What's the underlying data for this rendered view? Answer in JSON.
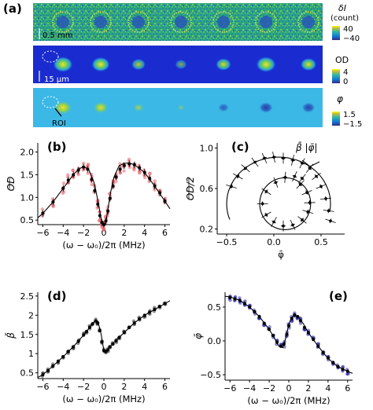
{
  "panel_labels": {
    "a": "(a)",
    "b": "(b)",
    "c": "(c)",
    "d": "(d)",
    "e": "(e)"
  },
  "strips": {
    "row1": {
      "scale_text": "0.5 mm",
      "cb_title_1": "δI",
      "cb_title_2": "(count)",
      "cb_max": "40",
      "cb_min": "−40"
    },
    "row2": {
      "scale_text": "15 μm",
      "cb_title": "OD",
      "cb_max": "4",
      "cb_min": "0"
    },
    "row3": {
      "roi_text": "ROI",
      "cb_title": "φ",
      "cb_max": "1.5",
      "cb_min": "−1.5"
    },
    "od_spots": [
      0.9,
      0.8,
      0.45,
      0.25,
      0.55,
      0.9,
      0.6
    ],
    "phi_spots": [
      0.85,
      0.6,
      0.25,
      0.05,
      -0.3,
      -0.55,
      -0.5
    ],
    "colors": {
      "row1_bg": "#2aa07a",
      "row2_bg": "#1a2bcf",
      "row3_bg": "#3cb8e6"
    }
  },
  "chart_data": [
    {
      "id": "b",
      "type": "scatter",
      "xlabel": "(ω − ω₀)/2π (MHz)",
      "ylabel": "OD",
      "xlim": [
        -6.5,
        6.5
      ],
      "ylim": [
        0.4,
        2.2
      ],
      "xticks": [
        -6,
        -4,
        -2,
        0,
        2,
        4,
        6
      ],
      "yticks": [
        0.5,
        1.0,
        1.5,
        2.0
      ],
      "ytick_labels": [
        "0.5",
        "1.0",
        "1.5",
        "2.0"
      ],
      "point_color": "#e8636a",
      "mean_color": "#000000",
      "fit_x": [
        -6.5,
        -6,
        -5,
        -4,
        -3,
        -2.5,
        -2,
        -1.5,
        -1,
        -0.7,
        -0.4,
        -0.2,
        0,
        0.2,
        0.4,
        0.7,
        1,
        1.5,
        2,
        2.5,
        3,
        4,
        5,
        6,
        6.5
      ],
      "fit_y": [
        0.55,
        0.65,
        0.9,
        1.2,
        1.5,
        1.62,
        1.68,
        1.62,
        1.35,
        1.05,
        0.7,
        0.45,
        0.38,
        0.45,
        0.75,
        1.15,
        1.45,
        1.7,
        1.75,
        1.76,
        1.72,
        1.55,
        1.25,
        0.92,
        0.75
      ],
      "mean_x": [
        -6,
        -5,
        -4,
        -3.5,
        -3,
        -2.5,
        -2,
        -1.6,
        -1.2,
        -0.9,
        -0.6,
        -0.4,
        -0.2,
        0,
        0.2,
        0.4,
        0.6,
        0.9,
        1.2,
        1.6,
        2,
        2.5,
        3,
        3.5,
        4,
        4.5,
        5,
        5.5,
        6
      ],
      "mean_y": [
        0.65,
        0.9,
        1.2,
        1.38,
        1.5,
        1.6,
        1.67,
        1.62,
        1.4,
        1.15,
        0.85,
        0.6,
        0.45,
        0.4,
        0.48,
        0.7,
        0.98,
        1.25,
        1.45,
        1.62,
        1.7,
        1.74,
        1.72,
        1.65,
        1.55,
        1.42,
        1.25,
        1.1,
        0.92
      ]
    },
    {
      "id": "c",
      "type": "scatter",
      "xlabel": "φ̄",
      "ylabel": "OD/2",
      "xlim": [
        -0.6,
        0.75
      ],
      "ylim": [
        0.15,
        1.05
      ],
      "xticks": [
        -0.5,
        0,
        0.5
      ],
      "xtick_labels": [
        "−0.5",
        "0.0",
        "0.5"
      ],
      "yticks": [
        0.2,
        0.6,
        1.0
      ],
      "ytick_labels": [
        "0.2",
        "0.6",
        "1.0"
      ],
      "annotation": "β̄ |φ̄|",
      "outer_arc": {
        "cx": 0.05,
        "cy": 0.43,
        "r": 0.48,
        "start_deg": 200,
        "end_deg": 350
      },
      "inner_circle": {
        "cx": 0.12,
        "cy": 0.45,
        "r": 0.27
      },
      "points_x": [
        -0.45,
        -0.38,
        -0.3,
        -0.2,
        -0.1,
        0,
        0.1,
        0.2,
        0.3,
        0.38,
        0.45,
        0.5,
        0.55,
        0.58,
        0.6,
        0.3,
        0.22,
        0.12,
        0.02,
        -0.08,
        -0.12,
        -0.08,
        0.0,
        0.1,
        0.2,
        0.3,
        0.36,
        0.38,
        0.35,
        0.28
      ],
      "points_y": [
        0.62,
        0.72,
        0.8,
        0.86,
        0.9,
        0.91,
        0.9,
        0.88,
        0.85,
        0.8,
        0.72,
        0.62,
        0.5,
        0.38,
        0.28,
        0.7,
        0.72,
        0.71,
        0.66,
        0.57,
        0.45,
        0.34,
        0.27,
        0.23,
        0.24,
        0.29,
        0.37,
        0.46,
        0.56,
        0.64
      ]
    },
    {
      "id": "d",
      "type": "scatter",
      "xlabel": "(ω − ω₀)/2π (MHz)",
      "ylabel": "β̄",
      "xlim": [
        -6.5,
        6.5
      ],
      "ylim": [
        0.35,
        2.6
      ],
      "xticks": [
        -6,
        -4,
        -2,
        0,
        2,
        4,
        6
      ],
      "yticks": [
        0.5,
        1.0,
        1.5,
        2.0,
        2.5
      ],
      "ytick_labels": [
        "0.5",
        "1",
        "1.5",
        "2",
        "2.5"
      ],
      "point_color": "#333333",
      "fit_x": [
        -6.5,
        -6,
        -5,
        -4,
        -3,
        -2,
        -1.5,
        -1,
        -0.6,
        -0.3,
        0,
        0.3,
        0.6,
        1,
        1.5,
        2,
        3,
        4,
        5,
        6,
        6.5
      ],
      "fit_y": [
        0.38,
        0.45,
        0.68,
        0.92,
        1.18,
        1.48,
        1.65,
        1.82,
        1.85,
        1.55,
        1.08,
        1.05,
        1.18,
        1.3,
        1.42,
        1.55,
        1.8,
        2.0,
        2.15,
        2.3,
        2.38
      ],
      "mean_x": [
        -6,
        -5.5,
        -5,
        -4.5,
        -4,
        -3.5,
        -3,
        -2.5,
        -2,
        -1.7,
        -1.4,
        -1.1,
        -0.8,
        -0.6,
        -0.4,
        -0.2,
        0,
        0.2,
        0.4,
        0.6,
        0.9,
        1.2,
        1.5,
        2,
        2.5,
        3,
        3.5,
        4,
        4.5,
        5,
        5.5,
        6
      ],
      "mean_y": [
        0.45,
        0.56,
        0.68,
        0.8,
        0.92,
        1.05,
        1.18,
        1.32,
        1.48,
        1.58,
        1.68,
        1.78,
        1.85,
        1.8,
        1.6,
        1.3,
        1.08,
        1.05,
        1.1,
        1.18,
        1.25,
        1.33,
        1.42,
        1.55,
        1.68,
        1.8,
        1.9,
        2.0,
        2.08,
        2.15,
        2.23,
        2.3
      ]
    },
    {
      "id": "e",
      "type": "scatter",
      "xlabel": "(ω − ω₀)/2π (MHz)",
      "ylabel": "φ̄",
      "xlim": [
        -6.5,
        6.5
      ],
      "ylim": [
        -0.58,
        0.72
      ],
      "xticks": [
        -6,
        -4,
        -2,
        0,
        2,
        4,
        6
      ],
      "yticks": [
        -0.5,
        0,
        0.5
      ],
      "ytick_labels": [
        "−0.5",
        "0.0",
        "0.5"
      ],
      "point_color": "#2b2ba8",
      "fit_x": [
        -6.5,
        -6,
        -5,
        -4,
        -3,
        -2,
        -1.5,
        -1,
        -0.6,
        -0.3,
        0,
        0.3,
        0.6,
        1,
        1.5,
        2,
        3,
        4,
        5,
        6,
        6.5
      ],
      "fit_y": [
        0.66,
        0.65,
        0.6,
        0.5,
        0.36,
        0.17,
        0.05,
        -0.08,
        -0.1,
        0.05,
        0.25,
        0.35,
        0.38,
        0.35,
        0.25,
        0.12,
        -0.08,
        -0.26,
        -0.38,
        -0.45,
        -0.48
      ],
      "mean_x": [
        -6,
        -5.5,
        -5,
        -4.5,
        -4,
        -3.5,
        -3,
        -2.5,
        -2,
        -1.6,
        -1.2,
        -0.8,
        -0.5,
        -0.2,
        0,
        0.3,
        0.6,
        0.9,
        1.2,
        1.6,
        2,
        2.5,
        3,
        3.5,
        4,
        4.5,
        5,
        5.5,
        6
      ],
      "mean_y": [
        0.64,
        0.62,
        0.6,
        0.55,
        0.5,
        0.43,
        0.36,
        0.26,
        0.17,
        0.08,
        -0.02,
        -0.08,
        -0.05,
        0.1,
        0.22,
        0.33,
        0.38,
        0.36,
        0.3,
        0.2,
        0.12,
        0.02,
        -0.08,
        -0.17,
        -0.25,
        -0.32,
        -0.38,
        -0.42,
        -0.45
      ]
    }
  ]
}
